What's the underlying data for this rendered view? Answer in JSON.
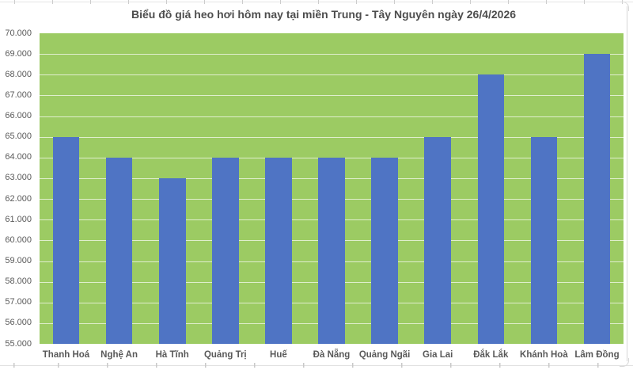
{
  "chart_data": {
    "type": "bar",
    "title": "Biểu đồ giá heo hơi hôm nay tại miền Trung - Tây Nguyên ngày 26/4/2026",
    "categories": [
      "Thanh Hoá",
      "Nghệ An",
      "Hà Tĩnh",
      "Quảng Trị",
      "Huế",
      "Đà Nẵng",
      "Quảng Ngãi",
      "Gia Lai",
      "Đắk Lắk",
      "Khánh Hoà",
      "Lâm Đồng"
    ],
    "values": [
      65000,
      64000,
      63000,
      64000,
      64000,
      64000,
      64000,
      65000,
      68000,
      65000,
      69000
    ],
    "xlabel": "",
    "ylabel": "",
    "ylim": [
      55000,
      70000
    ],
    "y_step": 1000,
    "y_ticks": [
      {
        "value": 70000,
        "label": "70.000"
      },
      {
        "value": 69000,
        "label": "69.000"
      },
      {
        "value": 68000,
        "label": "68.000"
      },
      {
        "value": 67000,
        "label": "67.000"
      },
      {
        "value": 66000,
        "label": "66.000"
      },
      {
        "value": 65000,
        "label": "65.000"
      },
      {
        "value": 64000,
        "label": "64.000"
      },
      {
        "value": 63000,
        "label": "63.000"
      },
      {
        "value": 62000,
        "label": "62.000"
      },
      {
        "value": 61000,
        "label": "61.000"
      },
      {
        "value": 60000,
        "label": "60.000"
      },
      {
        "value": 59000,
        "label": "59.000"
      },
      {
        "value": 58000,
        "label": "58.000"
      },
      {
        "value": 57000,
        "label": "57.000"
      },
      {
        "value": 56000,
        "label": "56.000"
      },
      {
        "value": 55000,
        "label": "55.000"
      }
    ],
    "grid": true,
    "legend": false,
    "colors": {
      "bar": "#4f74c4",
      "plot_background": "#9ccb63",
      "gridline": "rgba(255,255,255,0.68)",
      "title_text": "#4d4d4d",
      "axis_text": "#595959"
    }
  }
}
